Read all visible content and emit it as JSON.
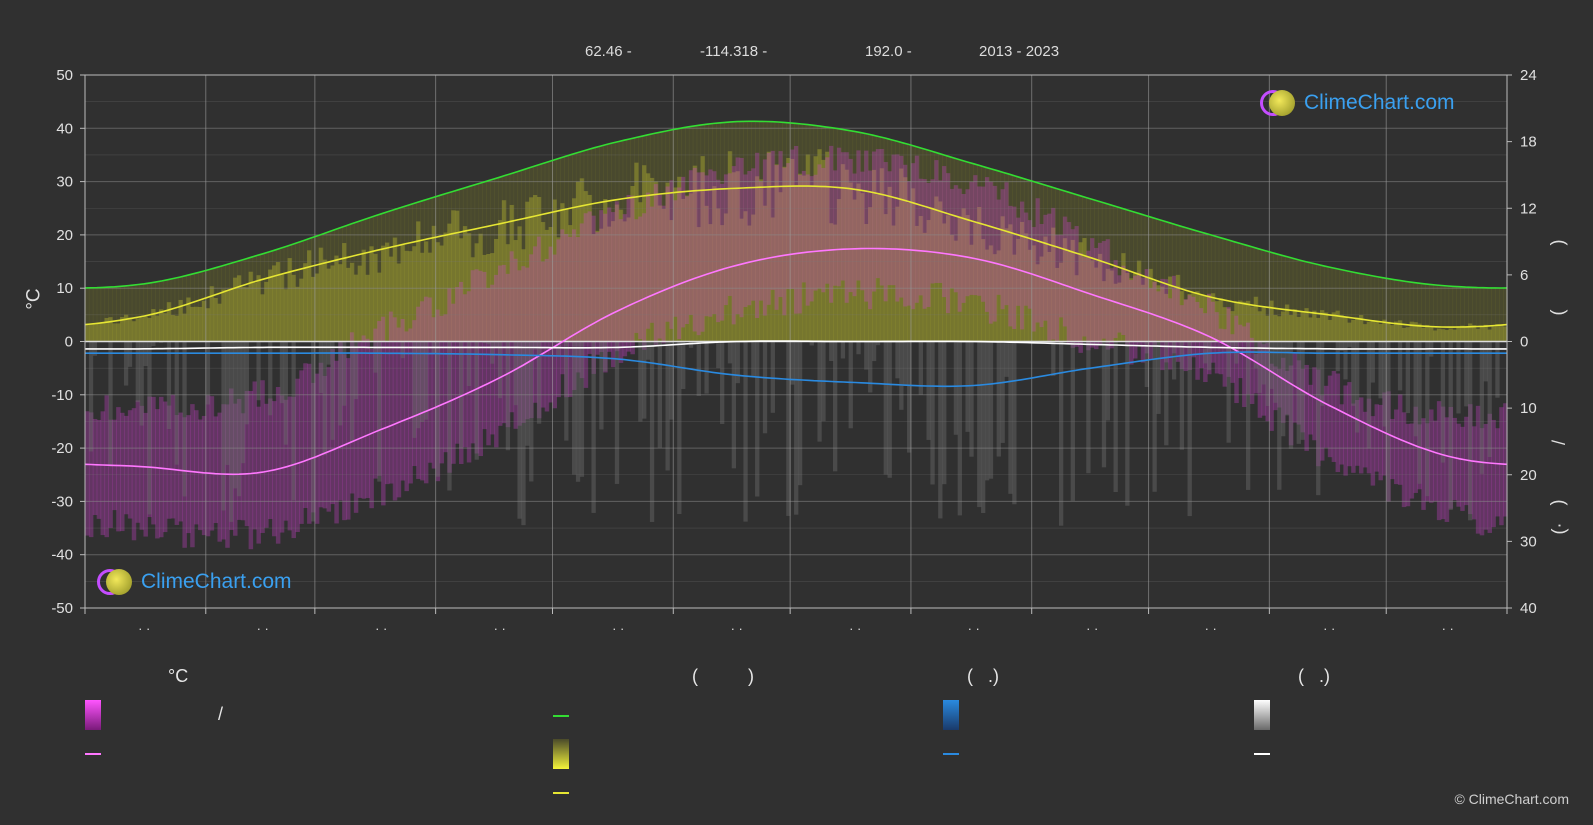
{
  "header": {
    "lat": "62.46 -",
    "lon": "-114.318 -",
    "elev": "192.0 -",
    "years": "2013 - 2023"
  },
  "logos": {
    "text": "ClimeChart.com"
  },
  "copyright": "© ClimeChart.com",
  "legend": {
    "temp_title": "°C",
    "temp_range_sep": "/",
    "sun_title": "(          )",
    "rain_title": "(   .)",
    "snow_title": "(   .)"
  },
  "colors": {
    "background": "#303030",
    "daylight": "#33dd33",
    "sunshine": "#e6e633",
    "temp_mean": "#ff77ff",
    "temp_range": "#dd22dd",
    "rain": "#2a8ae0",
    "snow": "#ffffff"
  },
  "chart_data": {
    "type": "line",
    "x_ticks": [
      "· ·",
      "· ·",
      "· ·",
      "· ·",
      "· ·",
      "· ·",
      "· ·",
      "· ·",
      "· ·",
      "· ·",
      "· ·",
      "· ·"
    ],
    "y_left": {
      "label": "°C",
      "ylim": [
        -50,
        50
      ],
      "ticks": [
        50,
        40,
        30,
        20,
        10,
        0,
        -10,
        -20,
        -30,
        -40,
        -50
      ]
    },
    "y_right_top": {
      "ylim": [
        0,
        24
      ],
      "ticks": [
        24,
        18,
        12,
        6,
        0
      ]
    },
    "y_right_bottom": {
      "ylim": [
        0,
        40
      ],
      "ticks": [
        10,
        20,
        30,
        40
      ]
    },
    "right_axis_glyphs": [
      ")",
      "(",
      "/",
      ")",
      "(·"
    ],
    "grid": true,
    "month_positions": [
      0.5,
      1.5,
      2.5,
      3.5,
      4.5,
      5.5,
      6.5,
      7.5,
      8.5,
      9.5,
      10.5,
      11.5
    ],
    "series": [
      {
        "key": "daylight",
        "color": "#33dd33",
        "values": [
          5.2,
          7.9,
          11.5,
          14.8,
          18.0,
          19.8,
          18.9,
          16.0,
          12.8,
          9.6,
          6.7,
          5.0
        ]
      },
      {
        "key": "sunshine",
        "color": "#e6e633",
        "values": [
          2.3,
          5.6,
          8.3,
          10.6,
          12.8,
          13.8,
          13.7,
          10.8,
          7.5,
          4.0,
          2.4,
          1.3
        ]
      },
      {
        "key": "temp_mean",
        "color": "#ff77ff",
        "values": [
          -23.5,
          -24.5,
          -16.5,
          -6.8,
          5.8,
          14.3,
          17.4,
          15.6,
          8.8,
          0.8,
          -12.0,
          -21.5
        ]
      },
      {
        "key": "rain",
        "color": "#2a8ae0",
        "values": [
          0.8,
          0.8,
          0.8,
          0.9,
          1.2,
          2.3,
          2.8,
          3.0,
          1.8,
          0.8,
          0.8,
          0.8
        ]
      },
      {
        "key": "snow",
        "color": "#ffffff",
        "values": [
          0.5,
          0.4,
          0.4,
          0.4,
          0.4,
          0.0,
          0.0,
          0.0,
          0.2,
          0.4,
          0.5,
          0.5
        ]
      }
    ],
    "daily_max_temp_envelope": [
      -12,
      -10,
      2,
      13,
      24,
      32,
      34,
      30,
      18,
      6,
      -8,
      -14
    ],
    "daily_min_temp_envelope": [
      -35,
      -36,
      -28,
      -17,
      -2,
      6,
      9,
      7,
      0,
      -6,
      -22,
      -32
    ]
  }
}
